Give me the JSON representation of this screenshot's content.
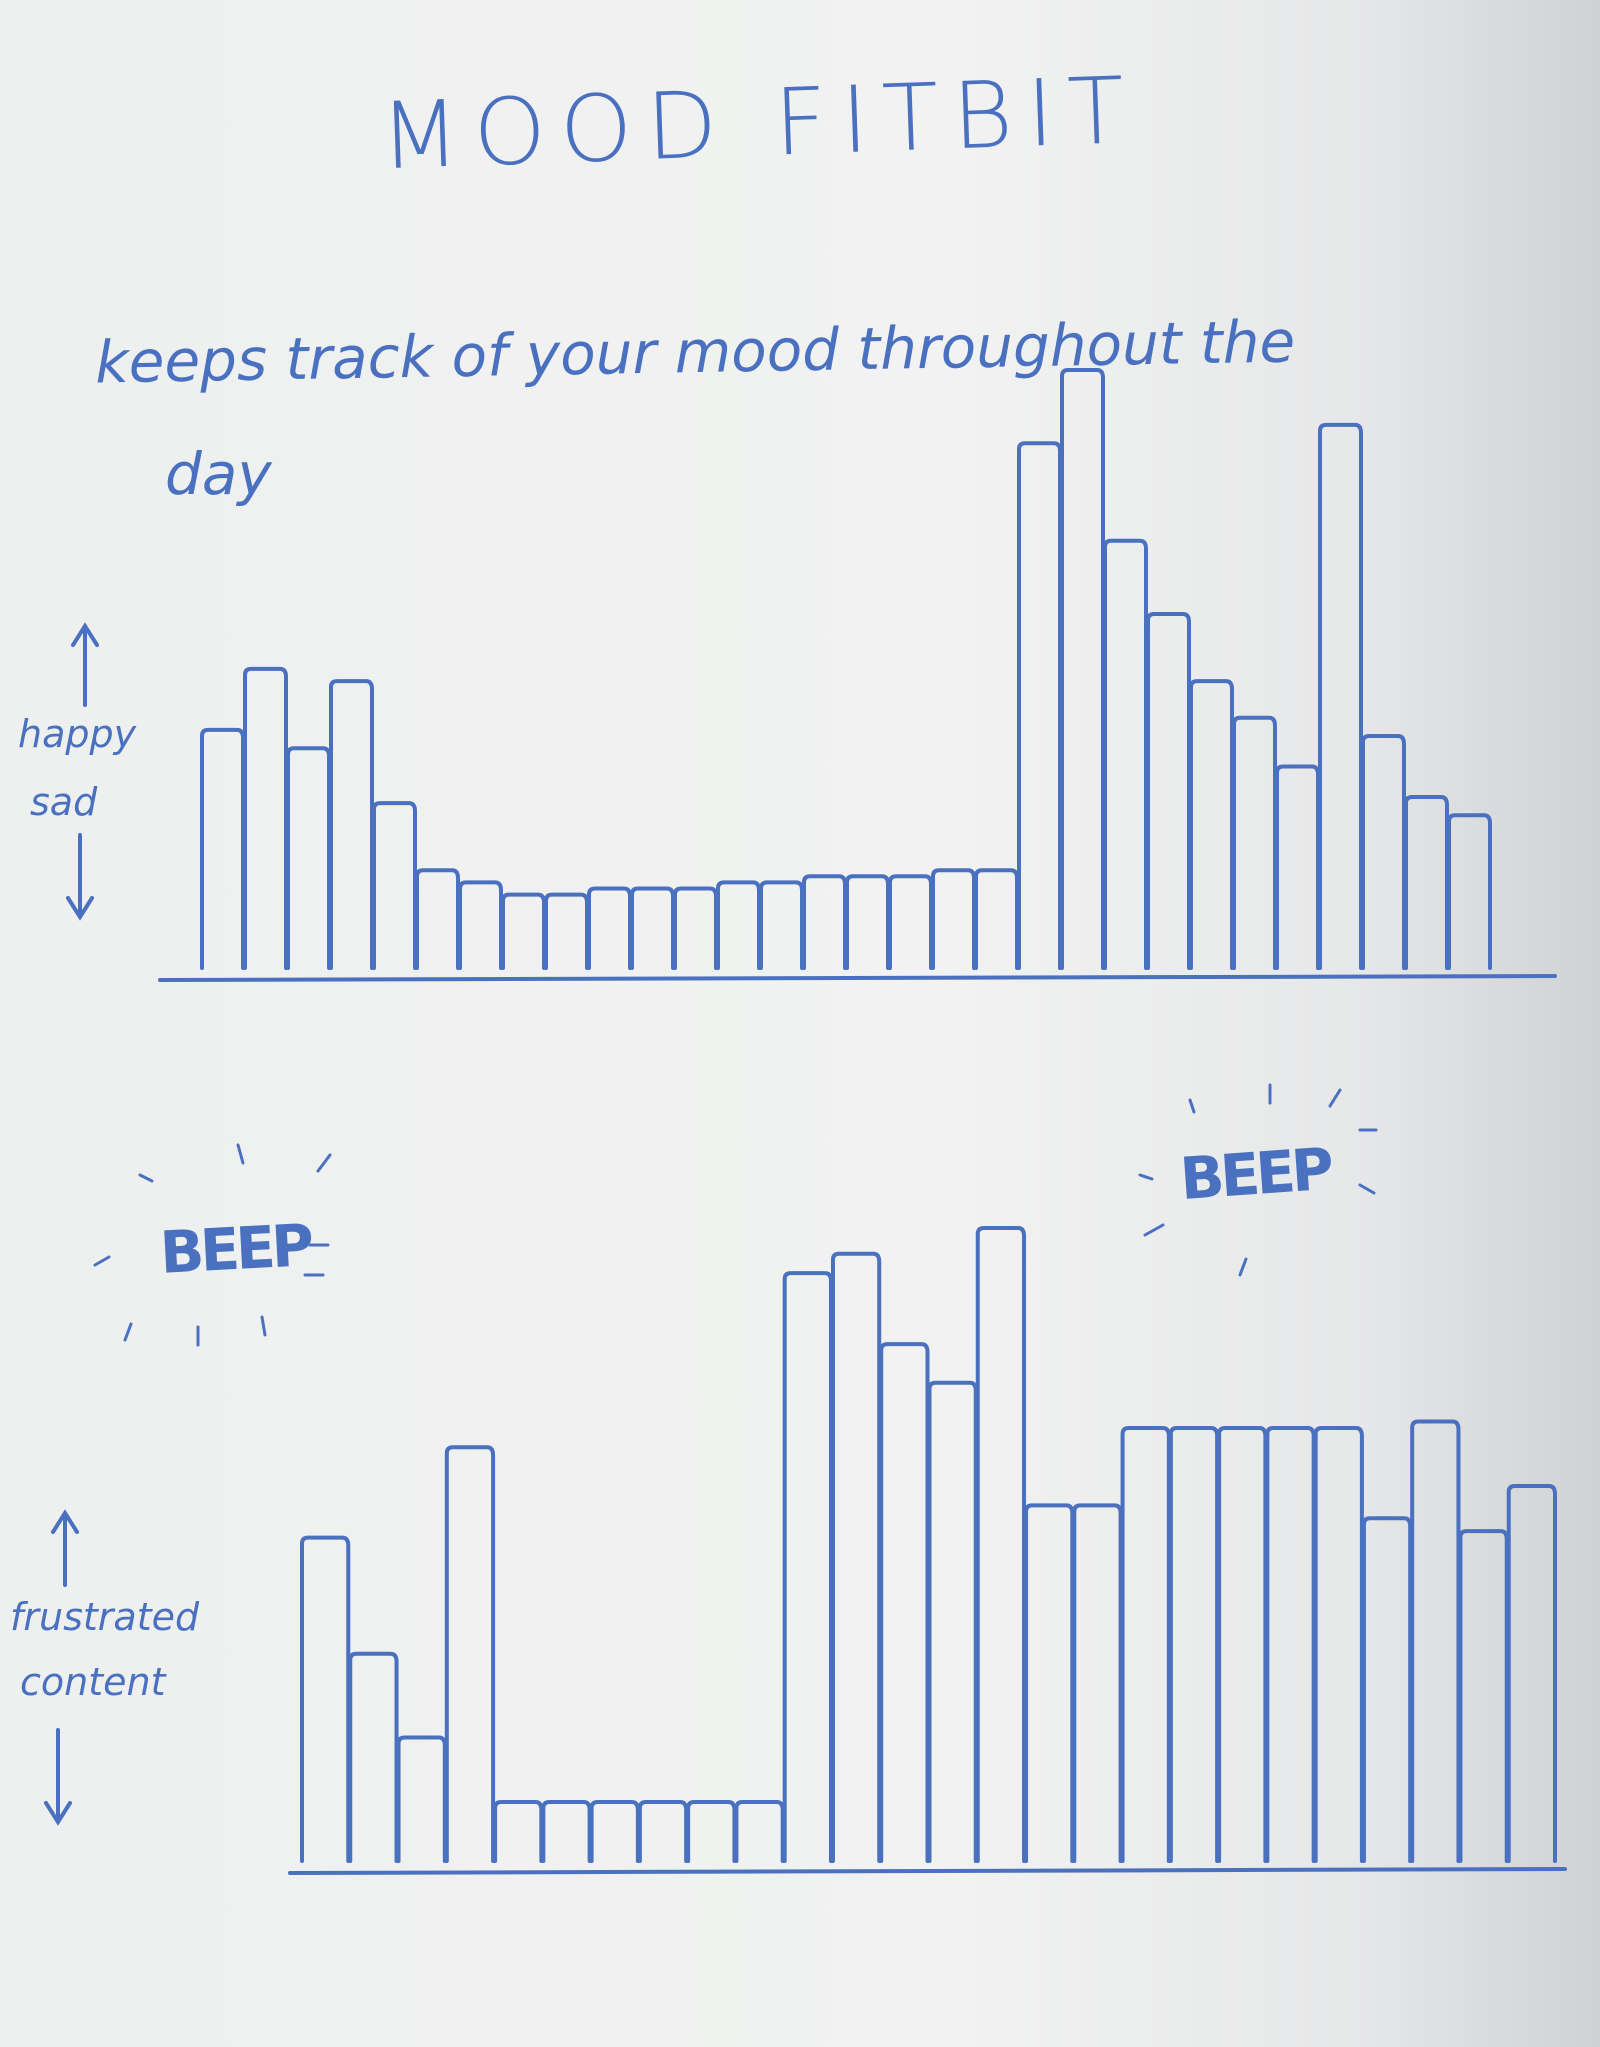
{
  "title": "MOOD FITBIT",
  "subtitle_line1": "keeps track of your mood throughout the",
  "subtitle_line2": "day",
  "beep_labels": [
    "BEEP",
    "BEEP"
  ],
  "colors": {
    "ink": "#4a70c0",
    "paper": "#f0f1f0"
  },
  "chart_data": [
    {
      "type": "bar",
      "ylabel_top": "happy",
      "ylabel_bottom": "sad",
      "axis_arrows": [
        "arrow-up",
        "arrow-down"
      ],
      "ylim": [
        0,
        100
      ],
      "values": [
        41,
        51,
        38,
        49,
        29,
        18,
        16,
        14,
        14,
        15,
        15,
        15,
        16,
        16,
        17,
        17,
        17,
        18,
        18,
        88,
        100,
        72,
        60,
        49,
        43,
        35,
        91,
        40,
        30,
        27
      ]
    },
    {
      "type": "bar",
      "ylabel_top": "frustrated",
      "ylabel_bottom": "content",
      "axis_arrows": [
        "arrow-up",
        "arrow-down"
      ],
      "ylim": [
        0,
        100
      ],
      "values": [
        52,
        34,
        21,
        66,
        11,
        11,
        11,
        11,
        11,
        11,
        93,
        96,
        82,
        76,
        100,
        57,
        57,
        69,
        69,
        69,
        69,
        69,
        55,
        70,
        53,
        60
      ]
    }
  ]
}
